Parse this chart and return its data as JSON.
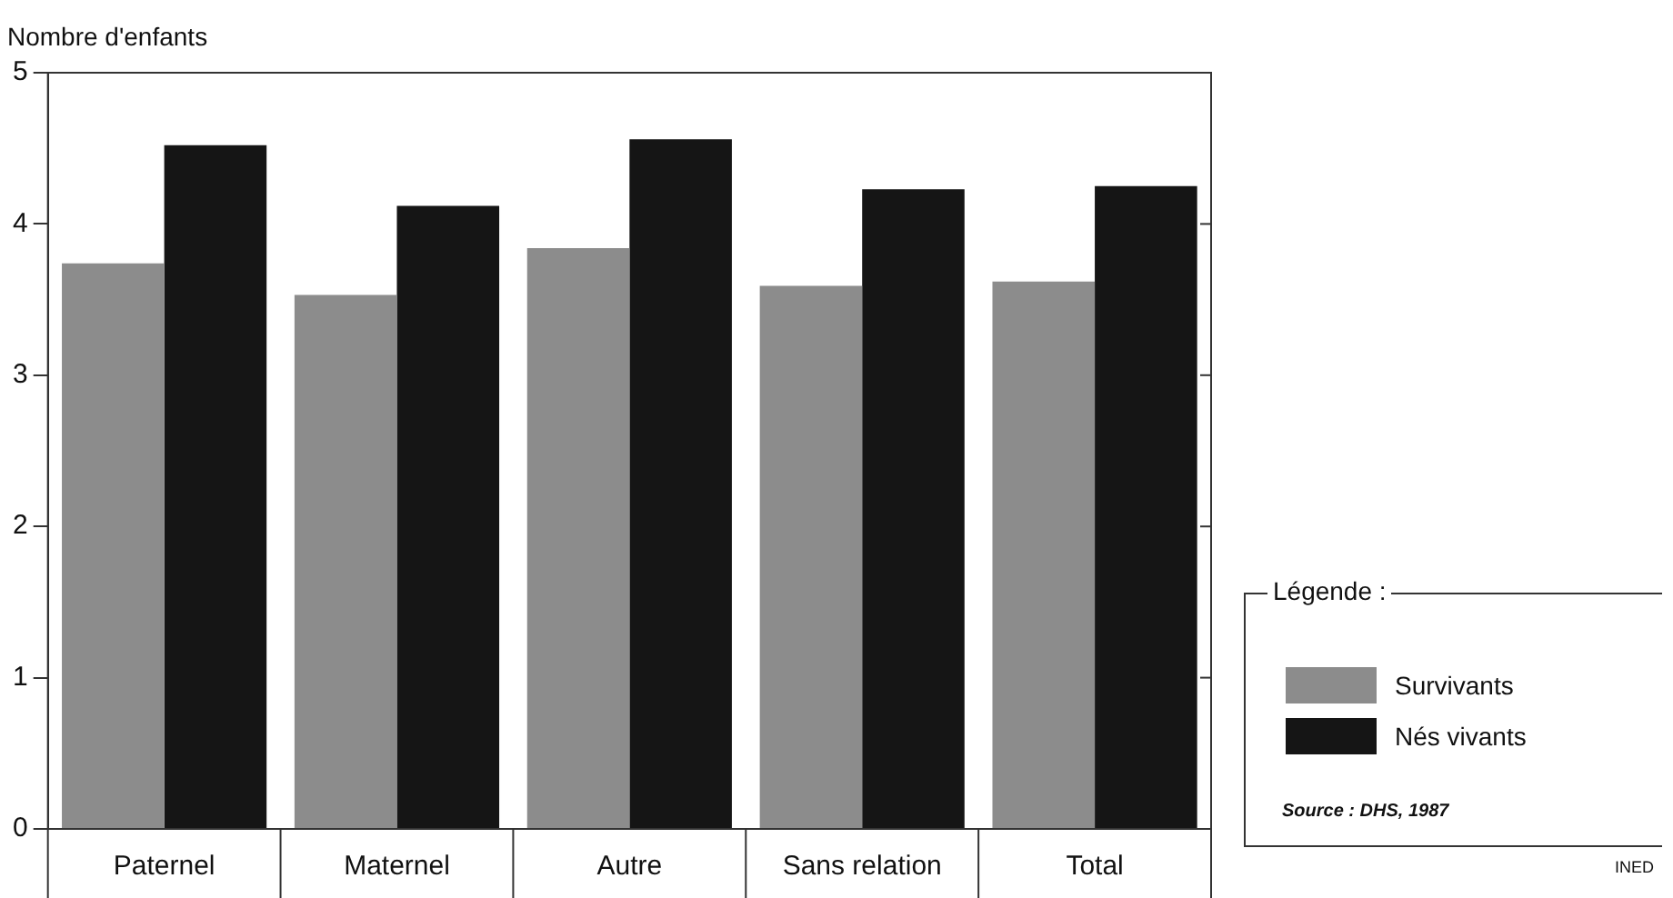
{
  "chart_data": {
    "type": "bar",
    "ylabel": "Nombre d'enfants",
    "categories": [
      "Paternel",
      "Maternel",
      "Autre",
      "Sans relation",
      "Total"
    ],
    "series": [
      {
        "name": "Survivants",
        "color": "#8c8c8c",
        "values": [
          3.74,
          3.53,
          3.84,
          3.59,
          3.62
        ]
      },
      {
        "name": "Nés vivants",
        "color": "#151515",
        "values": [
          4.52,
          4.12,
          4.56,
          4.23,
          4.25
        ]
      }
    ],
    "ylim": [
      0,
      5
    ],
    "yticks": [
      0,
      1,
      2,
      3,
      4,
      5
    ],
    "grid": false,
    "legend": "bottom right",
    "legend_title": "Légende :",
    "annotations": [
      "Source : DHS, 1987",
      "INED"
    ]
  }
}
